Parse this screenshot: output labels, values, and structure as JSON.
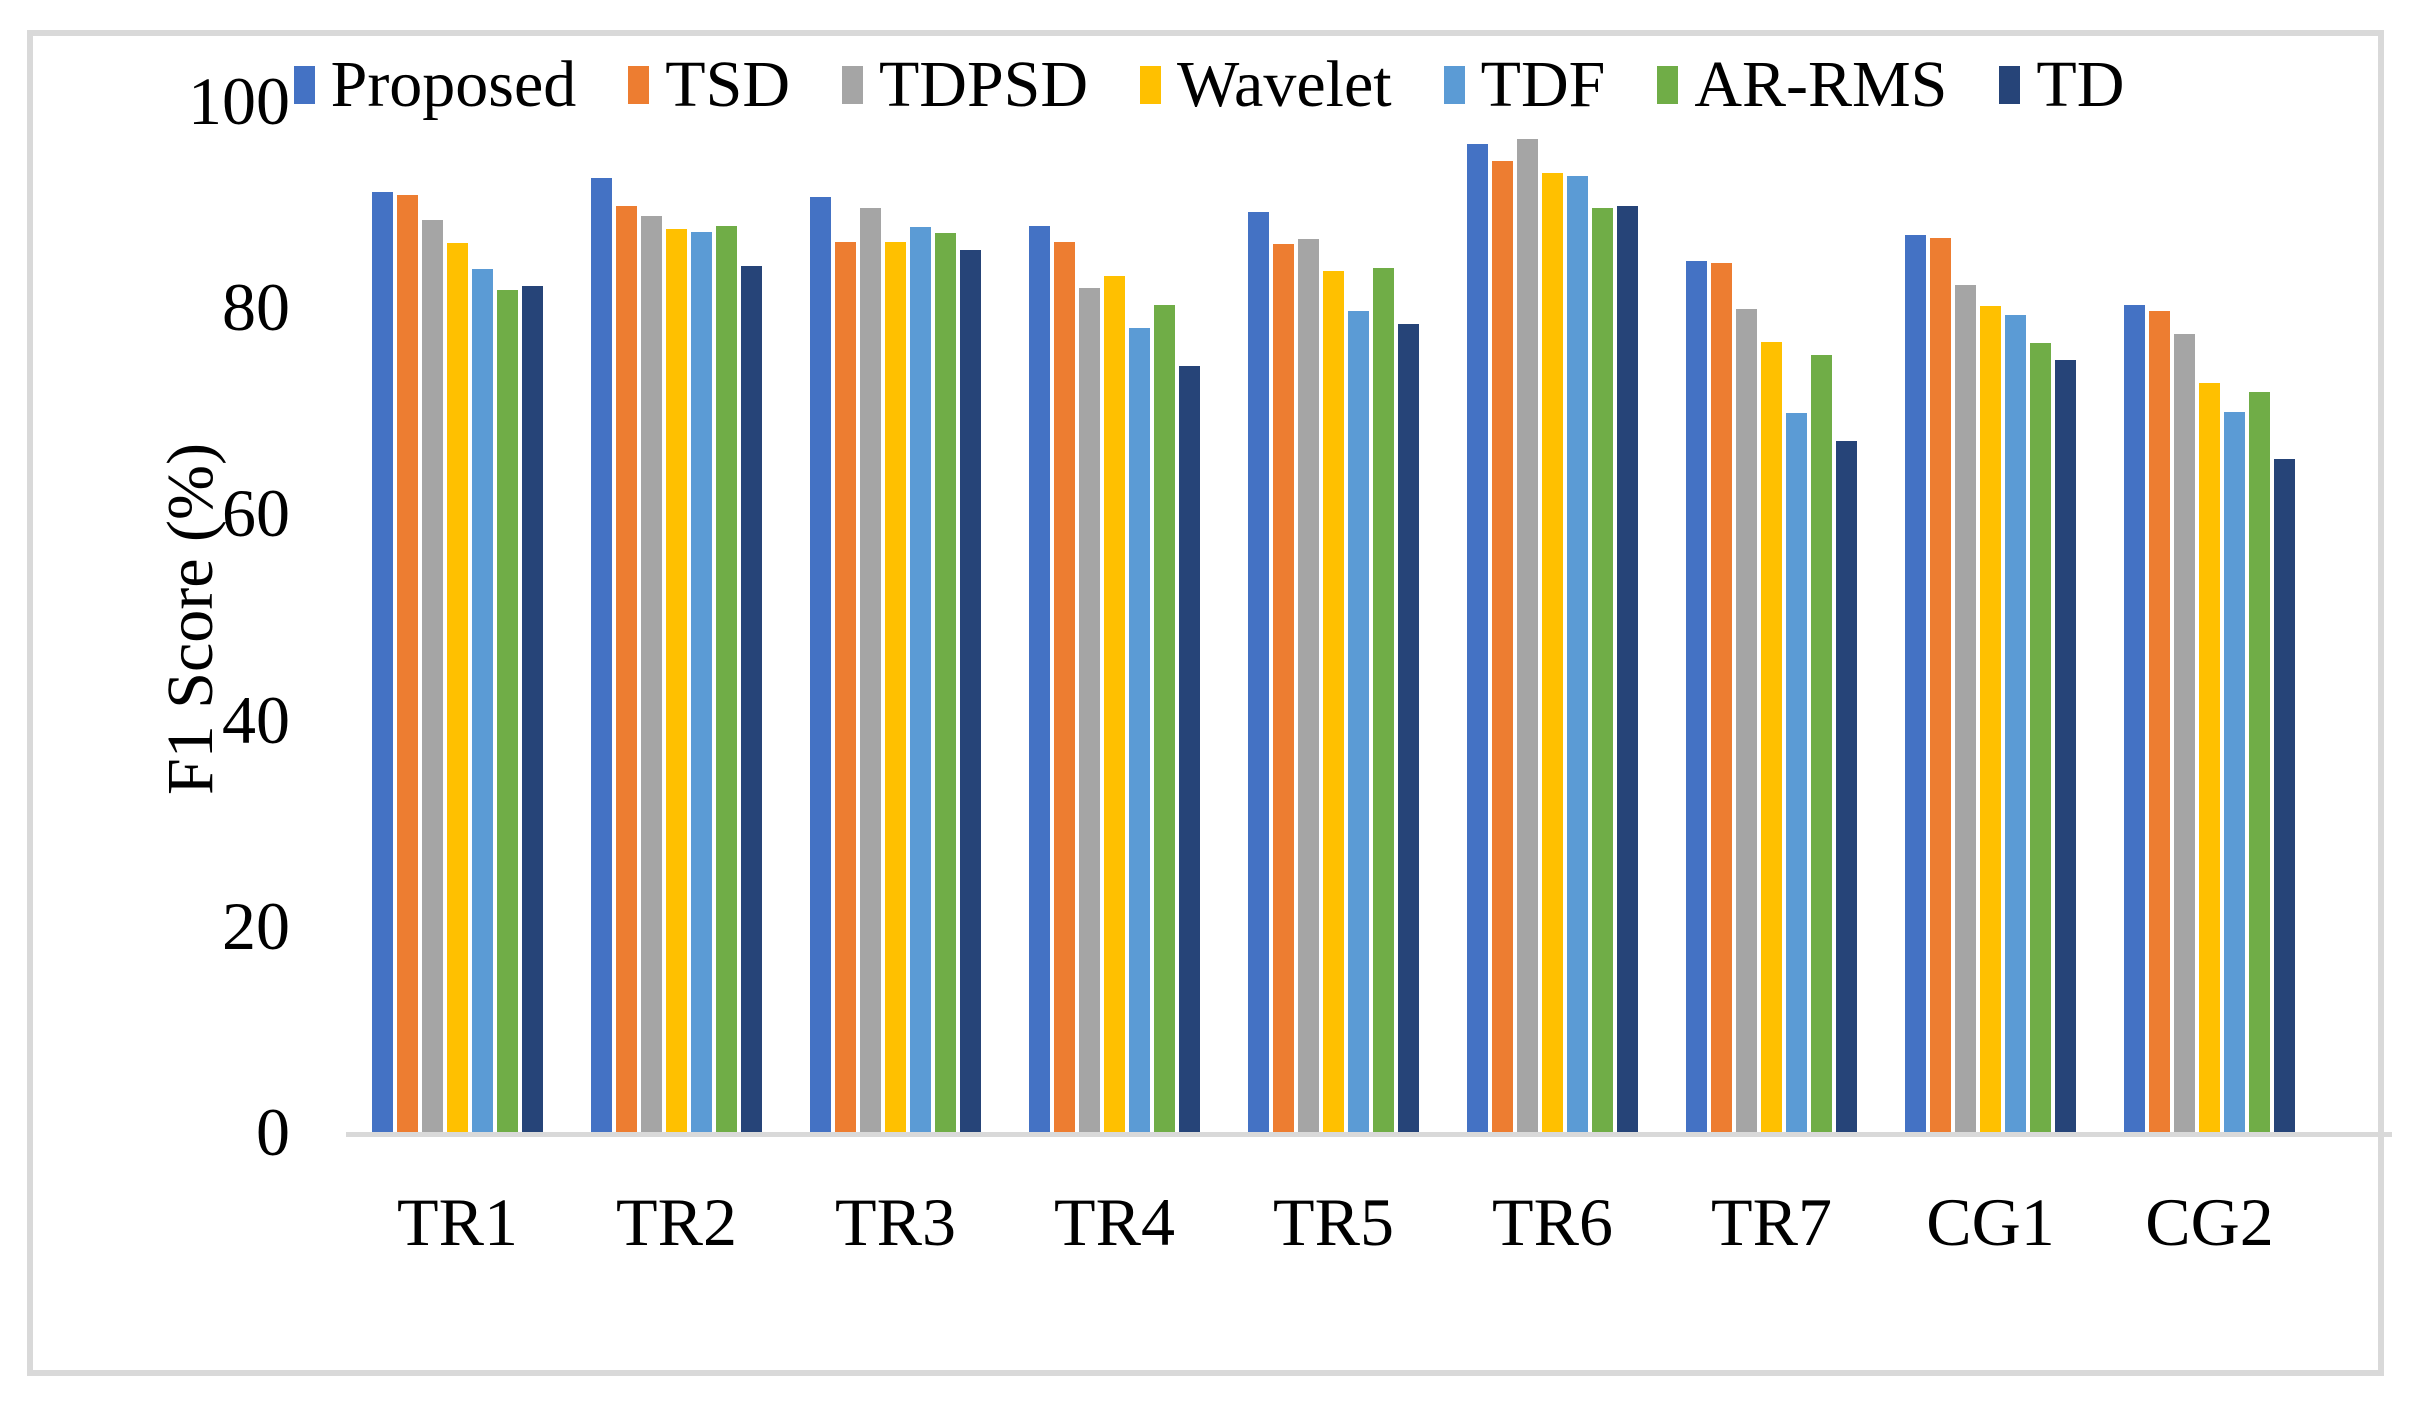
{
  "chart_data": {
    "type": "bar",
    "title": "",
    "xlabel": "",
    "ylabel": "F1 Score (%)",
    "ylim": [
      0,
      100
    ],
    "yticks": [
      0,
      20,
      40,
      60,
      80,
      100
    ],
    "grid": false,
    "legend_position": "top",
    "categories": [
      "TR1",
      "TR2",
      "TR3",
      "TR4",
      "TR5",
      "TR6",
      "TR7",
      "CG1",
      "CG2"
    ],
    "series": [
      {
        "name": "Proposed",
        "color": "#4472C4",
        "values": [
          91.2,
          92.5,
          90.7,
          87.9,
          89.2,
          95.8,
          84.5,
          87.0,
          80.2
        ]
      },
      {
        "name": "TSD",
        "color": "#ED7D31",
        "values": [
          90.9,
          89.8,
          86.3,
          86.3,
          86.1,
          94.2,
          84.3,
          86.7,
          79.6
        ]
      },
      {
        "name": "TDPSD",
        "color": "#A5A5A5",
        "values": [
          88.5,
          88.8,
          89.6,
          81.9,
          86.6,
          96.3,
          79.8,
          82.2,
          77.4
        ]
      },
      {
        "name": "Wavelet",
        "color": "#FFC000",
        "values": [
          86.2,
          87.6,
          86.3,
          83.0,
          83.5,
          93.0,
          76.6,
          80.1,
          72.6
        ]
      },
      {
        "name": "TDF",
        "color": "#5B9BD5",
        "values": [
          83.7,
          87.3,
          87.8,
          78.0,
          79.6,
          92.7,
          69.7,
          79.2,
          69.8
        ]
      },
      {
        "name": "AR-RMS",
        "color": "#70AD47",
        "values": [
          81.7,
          87.9,
          87.2,
          80.2,
          83.8,
          89.6,
          75.4,
          76.5,
          71.8
        ]
      },
      {
        "name": "TD",
        "color": "#264478",
        "values": [
          82.1,
          84.0,
          85.5,
          74.3,
          78.4,
          89.8,
          67.0,
          74.9,
          65.3
        ]
      }
    ]
  }
}
